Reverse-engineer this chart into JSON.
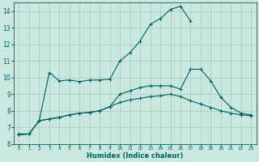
{
  "xlabel": "Humidex (Indice chaleur)",
  "background_color": "#c8e8e0",
  "grid_color": "#b0d0c8",
  "line_color": "#006060",
  "xlim": [
    -0.5,
    23.5
  ],
  "ylim": [
    6,
    14.5
  ],
  "yticks": [
    6,
    7,
    8,
    9,
    10,
    11,
    12,
    13,
    14
  ],
  "xticks": [
    0,
    1,
    2,
    3,
    4,
    5,
    6,
    7,
    8,
    9,
    10,
    11,
    12,
    13,
    14,
    15,
    16,
    17,
    18,
    19,
    20,
    21,
    22,
    23
  ],
  "line1_x": [
    0,
    1,
    2,
    3,
    4,
    5,
    6,
    7,
    8,
    9,
    10,
    11,
    12,
    13,
    14,
    15,
    16,
    17
  ],
  "line1_y": [
    6.6,
    6.6,
    7.4,
    10.3,
    9.8,
    9.85,
    9.75,
    9.85,
    9.85,
    9.9,
    11.0,
    11.5,
    12.2,
    13.2,
    13.55,
    14.1,
    14.3,
    13.4
  ],
  "line2_x": [
    0,
    1,
    2,
    3,
    4,
    5,
    6,
    7,
    8,
    9,
    10,
    11,
    12,
    13,
    14,
    15,
    16,
    17,
    18,
    19,
    20,
    21,
    22,
    23
  ],
  "line2_y": [
    6.55,
    6.6,
    7.4,
    7.5,
    7.6,
    7.75,
    7.85,
    7.9,
    8.0,
    8.25,
    8.5,
    8.65,
    8.75,
    8.85,
    8.9,
    9.0,
    8.85,
    8.6,
    8.4,
    8.2,
    8.0,
    7.85,
    7.75,
    7.7
  ],
  "line3_x": [
    0,
    1,
    2,
    3,
    4,
    5,
    6,
    7,
    8,
    9,
    10,
    11,
    12,
    13,
    14,
    15,
    16,
    17,
    18,
    19,
    20,
    21,
    22,
    23
  ],
  "line3_y": [
    6.55,
    6.6,
    7.4,
    7.5,
    7.6,
    7.75,
    7.85,
    7.9,
    8.0,
    8.25,
    9.0,
    9.2,
    9.4,
    9.5,
    9.5,
    9.5,
    9.3,
    10.5,
    10.5,
    9.8,
    8.8,
    8.2,
    7.85,
    7.75
  ]
}
